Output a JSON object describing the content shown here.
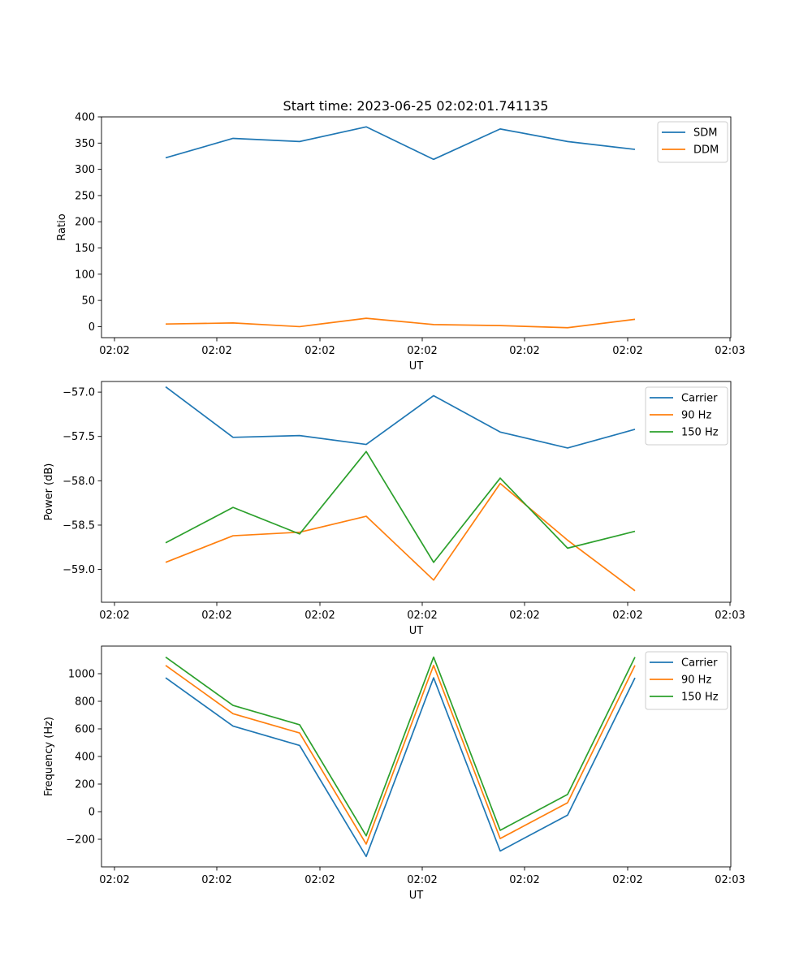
{
  "title": "Start time: 2023-06-25 02:02:01.741135",
  "chart_data": [
    {
      "type": "line",
      "xlabel": "UT",
      "ylabel": "Ratio",
      "x_tick_labels": [
        "02:02",
        "02:02",
        "02:02",
        "02:02",
        "02:02",
        "02:02",
        "02:02",
        "02:03"
      ],
      "ylim": [
        -21,
        400
      ],
      "y_ticks": [
        0,
        50,
        100,
        150,
        200,
        250,
        300,
        350,
        400
      ],
      "legend_position": "top-right",
      "grid": false,
      "series": [
        {
          "name": "SDM",
          "color": "#1f77b4",
          "values": [
            322,
            359,
            353,
            381,
            319,
            377,
            353,
            338
          ]
        },
        {
          "name": "DDM",
          "color": "#ff7f0e",
          "values": [
            5,
            7,
            0,
            16,
            4,
            2,
            -2,
            14
          ]
        }
      ]
    },
    {
      "type": "line",
      "xlabel": "UT",
      "ylabel": "Power (dB)",
      "x_tick_labels": [
        "02:02",
        "02:02",
        "02:02",
        "02:02",
        "02:02",
        "02:02",
        "02:02",
        "02:03"
      ],
      "ylim": [
        -59.37,
        -56.88
      ],
      "y_ticks": [
        -59.0,
        -58.5,
        -58.0,
        -57.5,
        -57.0
      ],
      "y_tick_labels": [
        "−59.0",
        "−58.5",
        "−58.0",
        "−57.5",
        "−57.0"
      ],
      "legend_position": "top-right",
      "grid": false,
      "series": [
        {
          "name": "Carrier",
          "color": "#1f77b4",
          "values": [
            -56.94,
            -57.51,
            -57.49,
            -57.59,
            -57.04,
            -57.45,
            -57.63,
            -57.42
          ]
        },
        {
          "name": "90 Hz",
          "color": "#ff7f0e",
          "values": [
            -58.92,
            -58.62,
            -58.58,
            -58.4,
            -59.12,
            -58.03,
            -58.67,
            -59.24
          ]
        },
        {
          "name": "150 Hz",
          "color": "#2ca02c",
          "values": [
            -58.7,
            -58.3,
            -58.6,
            -57.67,
            -58.92,
            -57.97,
            -58.76,
            -58.57
          ]
        }
      ]
    },
    {
      "type": "line",
      "xlabel": "UT",
      "ylabel": "Frequency (Hz)",
      "x_tick_labels": [
        "02:02",
        "02:02",
        "02:02",
        "02:02",
        "02:02",
        "02:02",
        "02:02",
        "02:03"
      ],
      "ylim": [
        -400,
        1200
      ],
      "y_ticks": [
        -200,
        0,
        200,
        400,
        600,
        800,
        1000
      ],
      "y_tick_labels": [
        "−200",
        "0",
        "200",
        "400",
        "600",
        "800",
        "1000"
      ],
      "legend_position": "top-right",
      "grid": false,
      "series": [
        {
          "name": "Carrier",
          "color": "#1f77b4",
          "values": [
            970,
            620,
            480,
            -325,
            970,
            -285,
            -25,
            970
          ]
        },
        {
          "name": "90 Hz",
          "color": "#ff7f0e",
          "values": [
            1060,
            710,
            570,
            -235,
            1060,
            -195,
            65,
            1060
          ]
        },
        {
          "name": "150 Hz",
          "color": "#2ca02c",
          "values": [
            1120,
            770,
            630,
            -175,
            1120,
            -135,
            125,
            1120
          ]
        }
      ]
    }
  ]
}
